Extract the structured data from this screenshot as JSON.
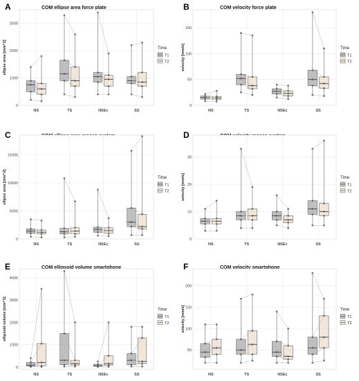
{
  "colors": {
    "T1": "#8a8a8a",
    "T2": "#eadccb",
    "grid": "#ebebeb",
    "point": "#555555",
    "line": "#b5b5b5"
  },
  "chart_data": [
    {
      "panel": "A",
      "type": "box",
      "title": "COM ellipse area force plate",
      "ylabel": "ellipse area [mm^2]",
      "xlabel": "",
      "categories": [
        "NS",
        "TS",
        "NSEc",
        "SS"
      ],
      "ylim": [
        0,
        3500
      ],
      "yticks": [
        0,
        1000,
        2000,
        3000
      ],
      "legend": {
        "title": "Time",
        "position": "right",
        "items": [
          "T1",
          "T2"
        ]
      },
      "grid": true,
      "series": [
        {
          "name": "T1",
          "boxes": [
            {
              "min": 200,
              "q1": 500,
              "median": 750,
              "q3": 900,
              "max": 1400
            },
            {
              "min": 400,
              "q1": 900,
              "median": 1150,
              "q3": 1650,
              "max": 3300
            },
            {
              "min": 400,
              "q1": 850,
              "median": 1050,
              "q3": 1200,
              "max": 3400
            },
            {
              "min": 400,
              "q1": 800,
              "median": 900,
              "q3": 1050,
              "max": 2200
            }
          ]
        },
        {
          "name": "T2",
          "boxes": [
            {
              "min": 150,
              "q1": 400,
              "median": 600,
              "q3": 800,
              "max": 1800
            },
            {
              "min": 300,
              "q1": 700,
              "median": 900,
              "q3": 1400,
              "max": 2600
            },
            {
              "min": 400,
              "q1": 700,
              "median": 950,
              "q3": 1100,
              "max": 1900
            },
            {
              "min": 300,
              "q1": 700,
              "median": 850,
              "q3": 1200,
              "max": 2300
            }
          ]
        }
      ]
    },
    {
      "panel": "B",
      "type": "box",
      "title": "COM velocity force plate",
      "ylabel": "velocity [mm/s]",
      "xlabel": "",
      "categories": [
        "NS",
        "TS",
        "NSEc",
        "SS"
      ],
      "ylim": [
        0,
        185
      ],
      "yticks": [
        0,
        50,
        100,
        150
      ],
      "legend": {
        "title": "Time",
        "position": "right",
        "items": [
          "T1",
          "T2"
        ]
      },
      "grid": true,
      "series": [
        {
          "name": "T1",
          "boxes": [
            {
              "min": 8,
              "q1": 12,
              "median": 15,
              "q3": 18,
              "max": 22
            },
            {
              "min": 25,
              "q1": 40,
              "median": 52,
              "q3": 60,
              "max": 140
            },
            {
              "min": 15,
              "q1": 22,
              "median": 27,
              "q3": 32,
              "max": 40
            },
            {
              "min": 20,
              "q1": 38,
              "median": 50,
              "q3": 68,
              "max": 180
            }
          ]
        },
        {
          "name": "T2",
          "boxes": [
            {
              "min": 7,
              "q1": 11,
              "median": 14,
              "q3": 17,
              "max": 28
            },
            {
              "min": 20,
              "q1": 32,
              "median": 38,
              "q3": 55,
              "max": 135
            },
            {
              "min": 12,
              "q1": 18,
              "median": 23,
              "q3": 28,
              "max": 38
            },
            {
              "min": 18,
              "q1": 33,
              "median": 42,
              "q3": 55,
              "max": 110
            }
          ]
        }
      ]
    },
    {
      "panel": "C",
      "type": "box",
      "title": "COM ellipse area mocap system",
      "ylabel": "ellipse area [mm^2]",
      "xlabel": "",
      "categories": [
        "NS",
        "TS",
        "NSEc",
        "SS"
      ],
      "ylim": [
        0,
        18500
      ],
      "yticks": [
        0,
        5000,
        10000,
        15000
      ],
      "legend": {
        "title": "Time",
        "position": "right",
        "items": [
          "T1",
          "T2"
        ]
      },
      "grid": true,
      "series": [
        {
          "name": "T1",
          "boxes": [
            {
              "min": 400,
              "q1": 1000,
              "median": 1400,
              "q3": 1800,
              "max": 3500
            },
            {
              "min": 300,
              "q1": 900,
              "median": 1300,
              "q3": 1900,
              "max": 10800
            },
            {
              "min": 600,
              "q1": 1200,
              "median": 1700,
              "q3": 2100,
              "max": 8800
            },
            {
              "min": 700,
              "q1": 2200,
              "median": 3000,
              "q3": 5500,
              "max": 15700
            }
          ]
        },
        {
          "name": "T2",
          "boxes": [
            {
              "min": 300,
              "q1": 900,
              "median": 1200,
              "q3": 1600,
              "max": 3300
            },
            {
              "min": 400,
              "q1": 900,
              "median": 1400,
              "q3": 2000,
              "max": 6700
            },
            {
              "min": 500,
              "q1": 1000,
              "median": 1500,
              "q3": 2000,
              "max": 3700
            },
            {
              "min": 700,
              "q1": 1800,
              "median": 2200,
              "q3": 4400,
              "max": 18300
            }
          ]
        }
      ]
    },
    {
      "panel": "D",
      "type": "box",
      "title": "COM velocity mocap system",
      "ylabel": "velocity [mm/s]",
      "xlabel": "",
      "categories": [
        "NS",
        "TS",
        "NSEc",
        "SS"
      ],
      "ylim": [
        0,
        38
      ],
      "yticks": [
        0,
        10,
        20,
        30
      ],
      "legend": {
        "title": "Time",
        "position": "right",
        "items": [
          "T1",
          "T2"
        ]
      },
      "grid": true,
      "series": [
        {
          "name": "T1",
          "boxes": [
            {
              "min": 3,
              "q1": 5.5,
              "median": 6.5,
              "q3": 7.5,
              "max": 11
            },
            {
              "min": 4,
              "q1": 7,
              "median": 8.5,
              "q3": 10,
              "max": 33
            },
            {
              "min": 5,
              "q1": 7,
              "median": 8.5,
              "q3": 10,
              "max": 16
            },
            {
              "min": 5,
              "q1": 9,
              "median": 11,
              "q3": 14,
              "max": 33
            }
          ]
        },
        {
          "name": "T2",
          "boxes": [
            {
              "min": 3,
              "q1": 5.5,
              "median": 6.5,
              "q3": 7.5,
              "max": 14
            },
            {
              "min": 4,
              "q1": 7,
              "median": 8.5,
              "q3": 11,
              "max": 19
            },
            {
              "min": 4,
              "q1": 6,
              "median": 7,
              "q3": 8.5,
              "max": 11
            },
            {
              "min": 5,
              "q1": 8.5,
              "median": 10,
              "q3": 13,
              "max": 36
            }
          ]
        }
      ]
    },
    {
      "panel": "E",
      "type": "box",
      "title": "COM ellipsoid volume smartphone",
      "ylabel": "ellipsoid volume [mm^3]",
      "xlabel": "",
      "categories": [
        "NS",
        "TS",
        "NSEc",
        "SS"
      ],
      "ylim": [
        -100,
        4400
      ],
      "yticks": [
        0,
        1000,
        2000,
        3000,
        4000
      ],
      "legend": {
        "title": "Time",
        "position": "right",
        "items": [
          "T1",
          "T2"
        ]
      },
      "grid": true,
      "series": [
        {
          "name": "T1",
          "boxes": [
            {
              "min": 10,
              "q1": 40,
              "median": 80,
              "q3": 200,
              "max": 400
            },
            {
              "min": 20,
              "q1": 100,
              "median": 300,
              "q3": 1500,
              "max": 4300
            },
            {
              "min": 10,
              "q1": 30,
              "median": 60,
              "q3": 120,
              "max": 250
            },
            {
              "min": 20,
              "q1": 100,
              "median": 300,
              "q3": 600,
              "max": 1800
            }
          ]
        },
        {
          "name": "T2",
          "boxes": [
            {
              "min": 10,
              "q1": 50,
              "median": 200,
              "q3": 1050,
              "max": 3500
            },
            {
              "min": 20,
              "q1": 80,
              "median": 150,
              "q3": 300,
              "max": 2000
            },
            {
              "min": 10,
              "q1": 80,
              "median": 150,
              "q3": 500,
              "max": 2000
            },
            {
              "min": 20,
              "q1": 150,
              "median": 250,
              "q3": 1300,
              "max": 1800
            }
          ]
        }
      ]
    },
    {
      "panel": "F",
      "type": "box",
      "title": "COM velocity smartphone",
      "ylabel": "velocity [mm/s]",
      "xlabel": "",
      "categories": [
        "NS",
        "TS",
        "NSEc",
        "SS"
      ],
      "ylim": [
        5,
        240
      ],
      "yticks": [
        50,
        100,
        150,
        200
      ],
      "legend": {
        "title": "Time",
        "position": "right",
        "items": [
          "T1",
          "T2"
        ]
      },
      "grid": true,
      "series": [
        {
          "name": "T1",
          "boxes": [
            {
              "min": 20,
              "q1": 33,
              "median": 45,
              "q3": 65,
              "max": 110
            },
            {
              "min": 20,
              "q1": 40,
              "median": 50,
              "q3": 75,
              "max": 170
            },
            {
              "min": 20,
              "q1": 35,
              "median": 45,
              "q3": 70,
              "max": 140
            },
            {
              "min": 20,
              "q1": 40,
              "median": 55,
              "q3": 80,
              "max": 230
            }
          ]
        },
        {
          "name": "T2",
          "boxes": [
            {
              "min": 20,
              "q1": 40,
              "median": 55,
              "q3": 75,
              "max": 110
            },
            {
              "min": 25,
              "q1": 40,
              "median": 63,
              "q3": 95,
              "max": 180
            },
            {
              "min": 20,
              "q1": 28,
              "median": 35,
              "q3": 60,
              "max": 100
            },
            {
              "min": 25,
              "q1": 55,
              "median": 80,
              "q3": 130,
              "max": 170
            }
          ]
        }
      ]
    }
  ]
}
